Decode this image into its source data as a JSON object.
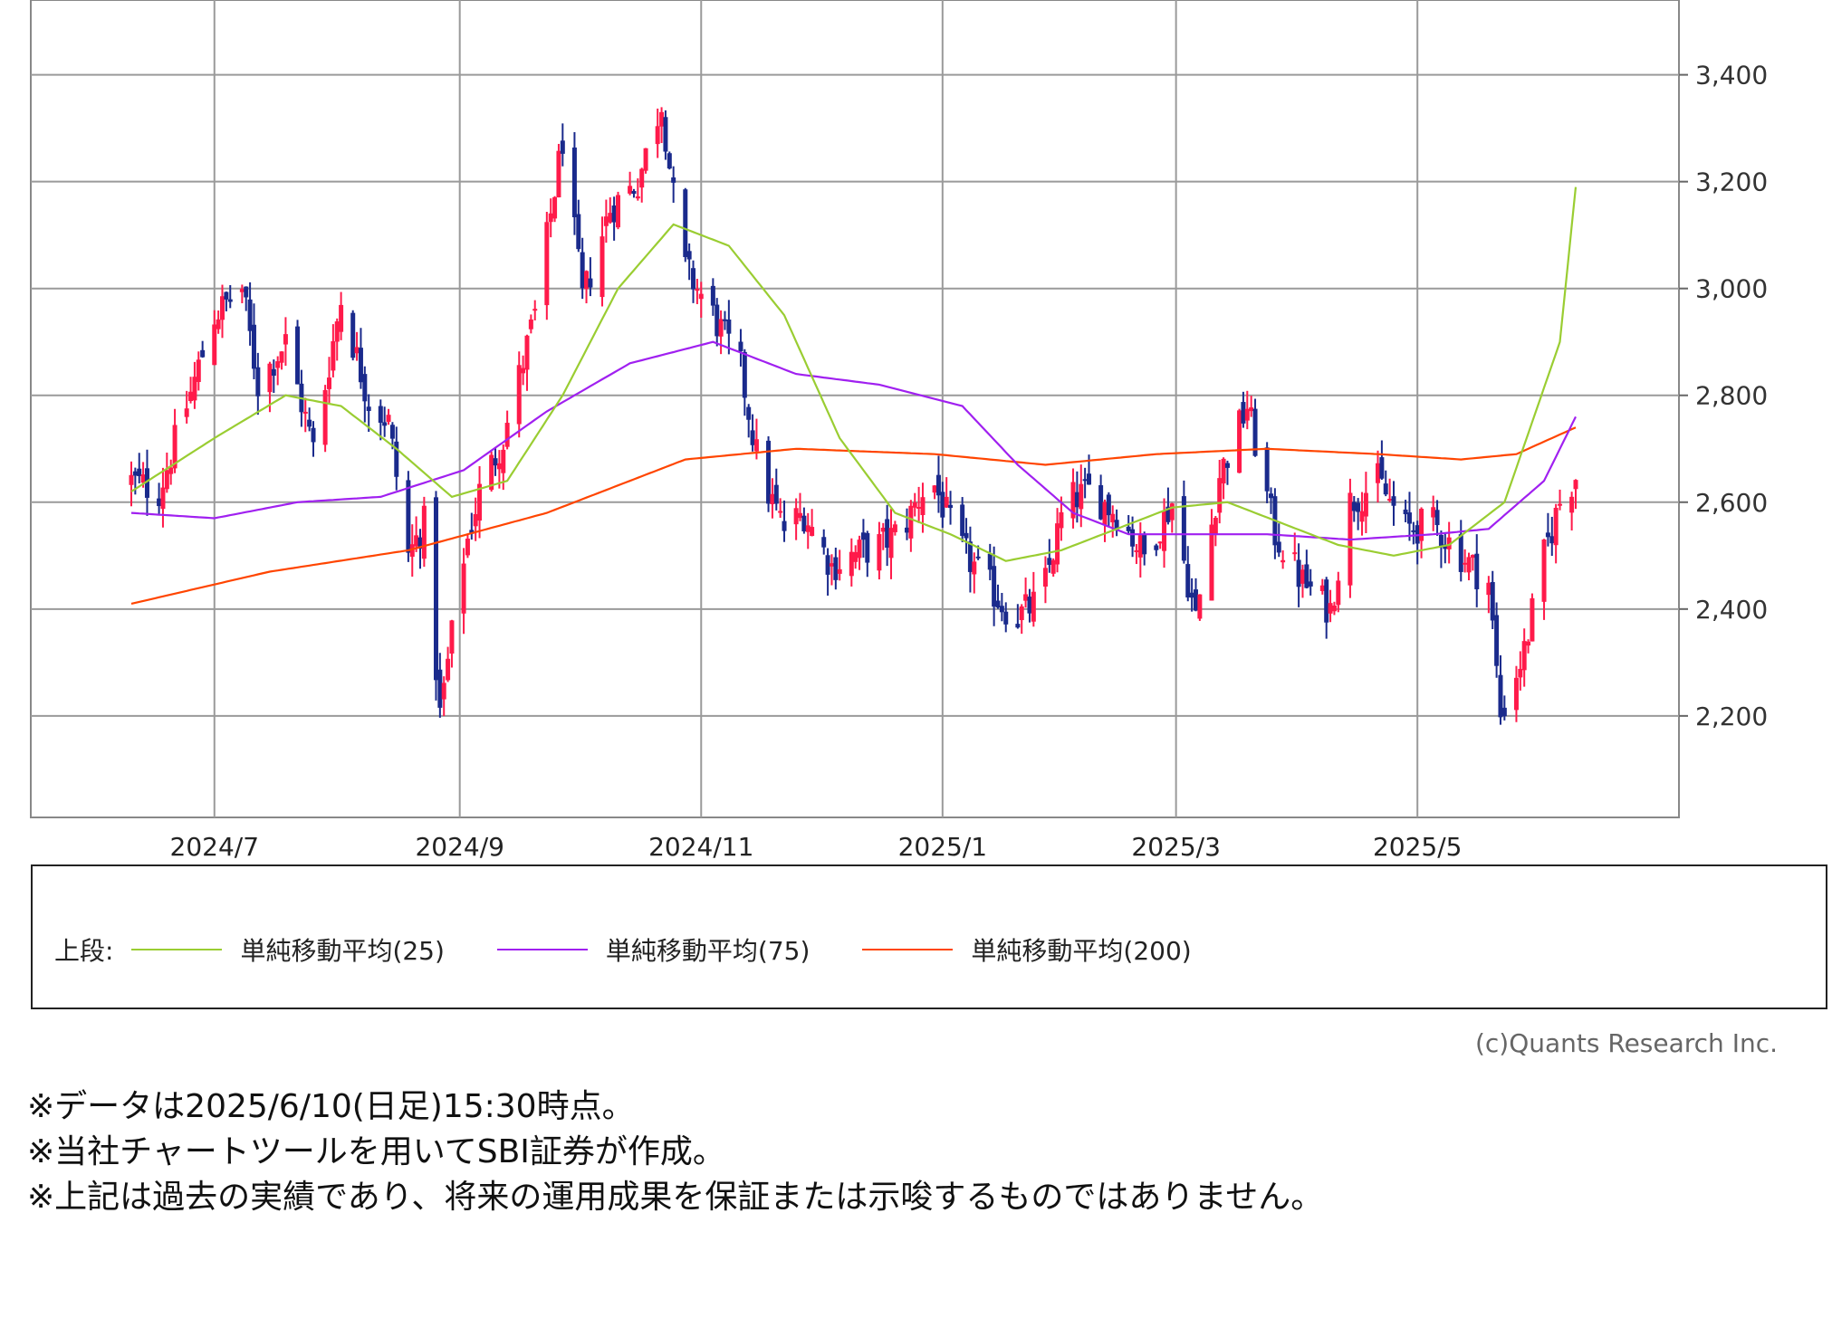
{
  "chart_data": {
    "type": "candlestick",
    "x_ticks": [
      "2024/7",
      "2024/9",
      "2024/11",
      "2025/1",
      "2025/3",
      "2025/5"
    ],
    "y_ticks": [
      "2,200",
      "2,400",
      "2,600",
      "2,800",
      "3,000",
      "3,200",
      "3,400"
    ],
    "y_tick_values": [
      2200,
      2400,
      2600,
      2800,
      3000,
      3200,
      3400
    ],
    "ylim": [
      2010,
      3540
    ],
    "x_start": "2024-06-10",
    "x_end": "2025-06-10",
    "grid": true,
    "colors": {
      "up": "#ff1a4a",
      "down": "#1a2a8c",
      "ma25": "#9acd32",
      "ma75": "#a020f0",
      "ma200": "#ff4500"
    },
    "close_anchors": [
      [
        "2024-06-10",
        2640
      ],
      [
        "2024-06-17",
        2620
      ],
      [
        "2024-06-24",
        2780
      ],
      [
        "2024-07-01",
        2950
      ],
      [
        "2024-07-08",
        3000
      ],
      [
        "2024-07-12",
        2820
      ],
      [
        "2024-07-19",
        2900
      ],
      [
        "2024-07-26",
        2700
      ],
      [
        "2024-08-02",
        2980
      ],
      [
        "2024-08-09",
        2790
      ],
      [
        "2024-08-14",
        2750
      ],
      [
        "2024-08-19",
        2500
      ],
      [
        "2024-08-23",
        2560
      ],
      [
        "2024-08-27",
        2200
      ],
      [
        "2024-09-02",
        2500
      ],
      [
        "2024-09-06",
        2620
      ],
      [
        "2024-09-12",
        2720
      ],
      [
        "2024-09-20",
        2950
      ],
      [
        "2024-09-27",
        3280
      ],
      [
        "2024-10-02",
        2980
      ],
      [
        "2024-10-09",
        3150
      ],
      [
        "2024-10-16",
        3200
      ],
      [
        "2024-10-22",
        3350
      ],
      [
        "2024-10-27",
        3050
      ],
      [
        "2024-11-04",
        2950
      ],
      [
        "2024-11-11",
        2850
      ],
      [
        "2024-11-16",
        2650
      ],
      [
        "2024-11-22",
        2550
      ],
      [
        "2024-11-27",
        2580
      ],
      [
        "2024-12-04",
        2480
      ],
      [
        "2024-12-09",
        2500
      ],
      [
        "2024-12-16",
        2520
      ],
      [
        "2024-12-22",
        2550
      ],
      [
        "2024-12-29",
        2650
      ],
      [
        "2025-01-05",
        2520
      ],
      [
        "2025-01-12",
        2450
      ],
      [
        "2025-01-19",
        2380
      ],
      [
        "2025-01-26",
        2420
      ],
      [
        "2025-02-01",
        2600
      ],
      [
        "2025-02-07",
        2620
      ],
      [
        "2025-02-14",
        2580
      ],
      [
        "2025-02-21",
        2500
      ],
      [
        "2025-02-28",
        2600
      ],
      [
        "2025-03-06",
        2380
      ],
      [
        "2025-03-12",
        2650
      ],
      [
        "2025-03-19",
        2780
      ],
      [
        "2025-03-26",
        2540
      ],
      [
        "2025-04-02",
        2450
      ],
      [
        "2025-04-09",
        2400
      ],
      [
        "2025-04-14",
        2600
      ],
      [
        "2025-04-21",
        2640
      ],
      [
        "2025-04-28",
        2550
      ],
      [
        "2025-05-05",
        2560
      ],
      [
        "2025-05-12",
        2500
      ],
      [
        "2025-05-19",
        2450
      ],
      [
        "2025-05-22",
        2200
      ],
      [
        "2025-05-28",
        2320
      ],
      [
        "2025-06-02",
        2500
      ],
      [
        "2025-06-06",
        2600
      ],
      [
        "2025-06-10",
        2650
      ]
    ],
    "ma25_anchors": [
      [
        "2024-06-10",
        2620
      ],
      [
        "2024-07-01",
        2720
      ],
      [
        "2024-07-19",
        2800
      ],
      [
        "2024-08-02",
        2780
      ],
      [
        "2024-08-16",
        2700
      ],
      [
        "2024-08-30",
        2610
      ],
      [
        "2024-09-13",
        2640
      ],
      [
        "2024-09-27",
        2800
      ],
      [
        "2024-10-11",
        3000
      ],
      [
        "2024-10-25",
        3120
      ],
      [
        "2024-11-08",
        3080
      ],
      [
        "2024-11-22",
        2950
      ],
      [
        "2024-12-06",
        2720
      ],
      [
        "2024-12-20",
        2580
      ],
      [
        "2025-01-03",
        2540
      ],
      [
        "2025-01-17",
        2490
      ],
      [
        "2025-01-31",
        2510
      ],
      [
        "2025-02-14",
        2550
      ],
      [
        "2025-02-28",
        2590
      ],
      [
        "2025-03-14",
        2600
      ],
      [
        "2025-03-28",
        2560
      ],
      [
        "2025-04-11",
        2520
      ],
      [
        "2025-04-25",
        2500
      ],
      [
        "2025-05-09",
        2520
      ],
      [
        "2025-05-23",
        2600
      ],
      [
        "2025-06-06",
        2900
      ],
      [
        "2025-06-10",
        3190
      ]
    ],
    "ma75_anchors": [
      [
        "2024-06-10",
        2580
      ],
      [
        "2024-07-01",
        2570
      ],
      [
        "2024-07-22",
        2600
      ],
      [
        "2024-08-12",
        2610
      ],
      [
        "2024-09-02",
        2660
      ],
      [
        "2024-09-23",
        2770
      ],
      [
        "2024-10-14",
        2860
      ],
      [
        "2024-11-04",
        2900
      ],
      [
        "2024-11-25",
        2840
      ],
      [
        "2024-12-16",
        2820
      ],
      [
        "2025-01-06",
        2780
      ],
      [
        "2025-01-20",
        2670
      ],
      [
        "2025-02-03",
        2580
      ],
      [
        "2025-02-17",
        2540
      ],
      [
        "2025-03-03",
        2540
      ],
      [
        "2025-03-24",
        2540
      ],
      [
        "2025-04-14",
        2530
      ],
      [
        "2025-05-05",
        2540
      ],
      [
        "2025-05-19",
        2550
      ],
      [
        "2025-06-02",
        2640
      ],
      [
        "2025-06-10",
        2760
      ]
    ],
    "ma200_anchors": [
      [
        "2024-06-10",
        2410
      ],
      [
        "2024-07-15",
        2470
      ],
      [
        "2024-08-19",
        2510
      ],
      [
        "2024-09-23",
        2580
      ],
      [
        "2024-10-28",
        2680
      ],
      [
        "2024-11-25",
        2700
      ],
      [
        "2024-12-30",
        2690
      ],
      [
        "2025-01-27",
        2670
      ],
      [
        "2025-02-24",
        2690
      ],
      [
        "2025-03-24",
        2700
      ],
      [
        "2025-04-21",
        2690
      ],
      [
        "2025-05-12",
        2680
      ],
      [
        "2025-05-26",
        2690
      ],
      [
        "2025-06-10",
        2740
      ]
    ],
    "legend": {
      "prefix": "上段:",
      "items": [
        {
          "label": "単純移動平均(25)",
          "color": "#9acd32"
        },
        {
          "label": "単純移動平均(75)",
          "color": "#a020f0"
        },
        {
          "label": "単純移動平均(200)",
          "color": "#ff4500"
        }
      ]
    }
  },
  "copyright": "(c)Quants Research Inc.",
  "notes": [
    "※データは2025/6/10(日足)15:30時点。",
    "※当社チャートツールを用いてSBI証券が作成。",
    "※上記は過去の実績であり、将来の運用成果を保証または示唆するものではありません。"
  ]
}
